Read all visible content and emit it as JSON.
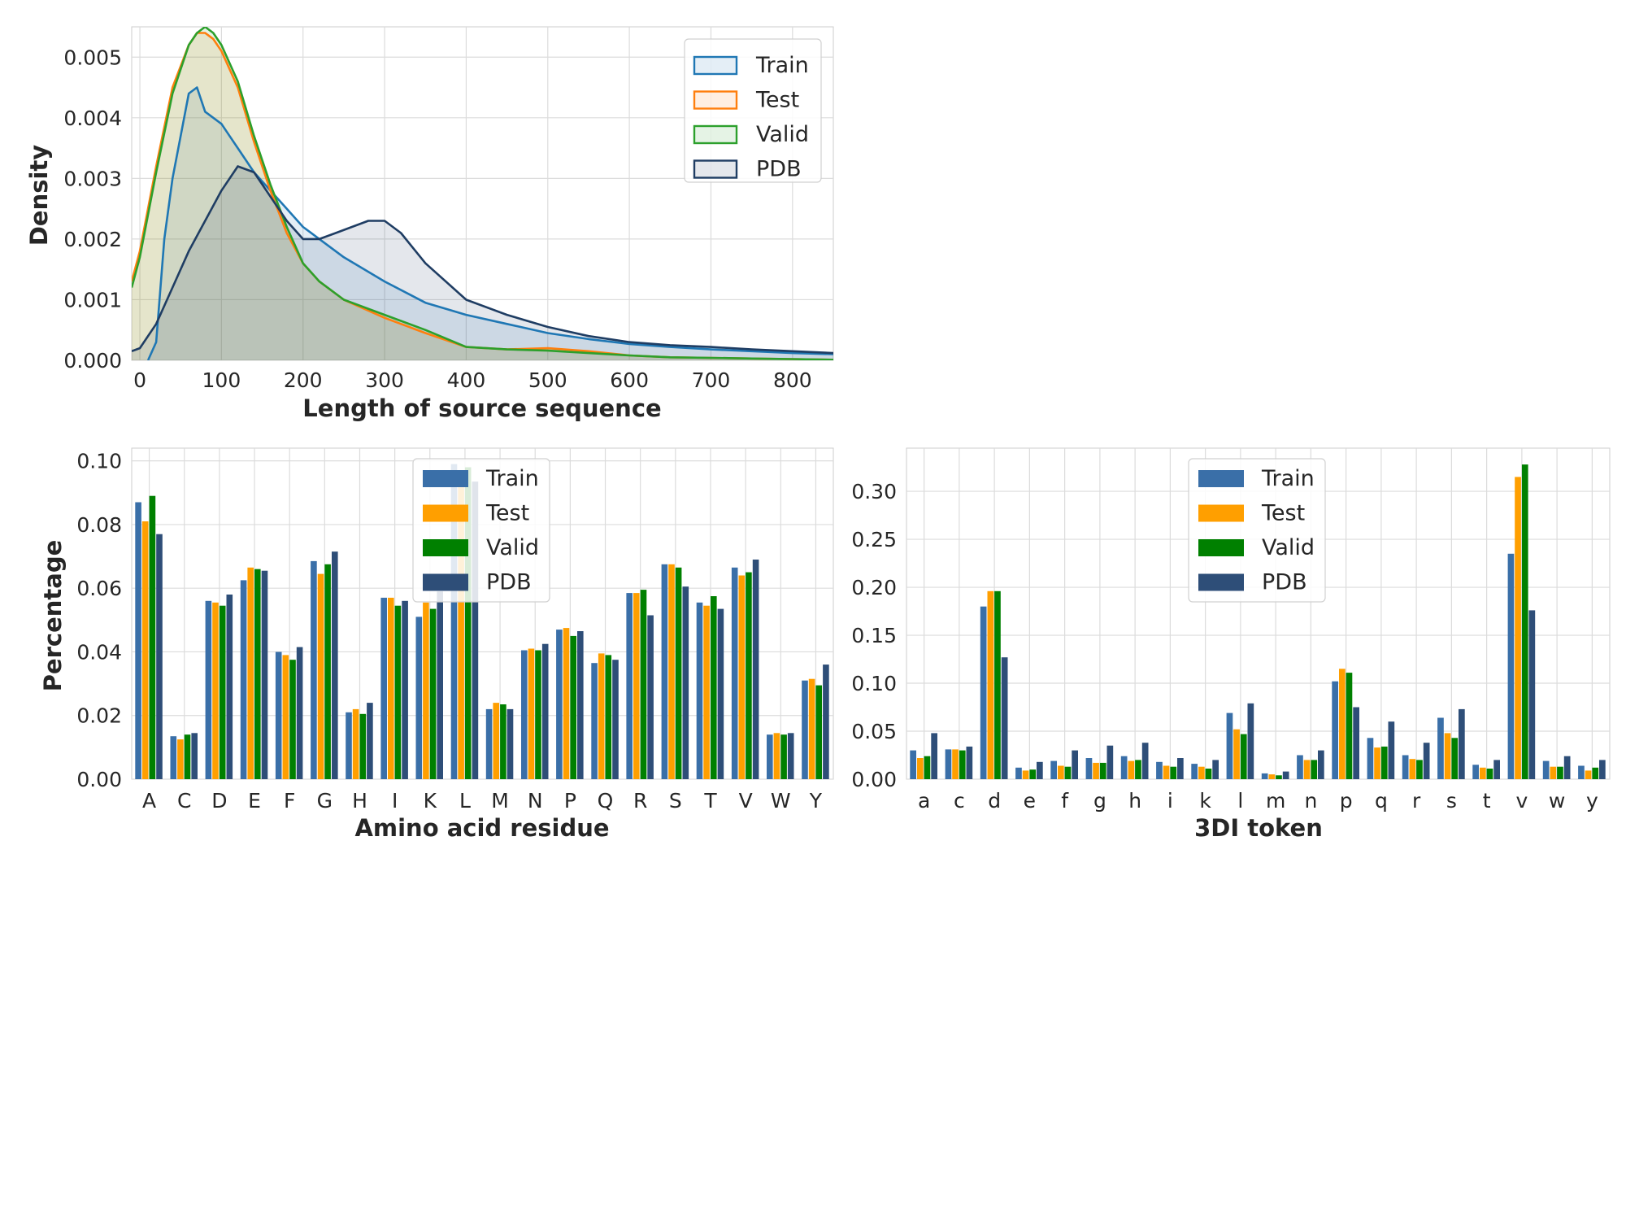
{
  "chart_data": [
    {
      "type": "area",
      "xlabel": "Length of source sequence",
      "ylabel": "Density",
      "xlim": [
        -10,
        850
      ],
      "ylim": [
        0,
        0.0055
      ],
      "xticks": [
        "0",
        "100",
        "200",
        "300",
        "400",
        "500",
        "600",
        "700",
        "800"
      ],
      "yticks": [
        "0.000",
        "0.001",
        "0.002",
        "0.003",
        "0.004",
        "0.005"
      ],
      "grid": true,
      "legend": "top-right",
      "series": [
        {
          "name": "Train",
          "color": "#1f77b4",
          "x": [
            10,
            20,
            30,
            40,
            50,
            60,
            70,
            80,
            90,
            100,
            110,
            120,
            140,
            160,
            180,
            200,
            220,
            250,
            300,
            350,
            400,
            450,
            500,
            550,
            600,
            650,
            700,
            750,
            800,
            850
          ],
          "y": [
            0,
            0.0003,
            0.002,
            0.003,
            0.0037,
            0.0044,
            0.0045,
            0.0041,
            0.004,
            0.0039,
            0.0037,
            0.0035,
            0.0031,
            0.0028,
            0.0025,
            0.0022,
            0.002,
            0.0017,
            0.0013,
            0.00095,
            0.00075,
            0.0006,
            0.00045,
            0.00035,
            0.00027,
            0.00022,
            0.00018,
            0.00015,
            0.00012,
            0.0001
          ]
        },
        {
          "name": "Test",
          "color": "#ff7f0e",
          "x": [
            -10,
            0,
            20,
            40,
            60,
            70,
            80,
            90,
            100,
            120,
            140,
            160,
            180,
            200,
            220,
            250,
            300,
            350,
            400,
            450,
            500,
            550,
            600,
            650,
            700,
            750,
            800,
            850
          ],
          "y": [
            0.0013,
            0.0018,
            0.0032,
            0.0045,
            0.0052,
            0.0054,
            0.0054,
            0.0053,
            0.0051,
            0.0045,
            0.0036,
            0.0028,
            0.0021,
            0.0016,
            0.0013,
            0.001,
            0.0007,
            0.00045,
            0.00022,
            0.00018,
            0.0002,
            0.00015,
            8e-05,
            5e-05,
            4e-05,
            3e-05,
            2e-05,
            1e-05
          ]
        },
        {
          "name": "Valid",
          "color": "#2ca02c",
          "x": [
            -10,
            0,
            20,
            40,
            60,
            70,
            80,
            90,
            100,
            120,
            140,
            160,
            180,
            200,
            220,
            250,
            300,
            350,
            400,
            450,
            500,
            550,
            600,
            650,
            700,
            750,
            800,
            850
          ],
          "y": [
            0.0012,
            0.0017,
            0.0031,
            0.0044,
            0.0052,
            0.0054,
            0.0055,
            0.0054,
            0.0052,
            0.0046,
            0.0037,
            0.0029,
            0.0022,
            0.0016,
            0.0013,
            0.001,
            0.00075,
            0.0005,
            0.00022,
            0.00018,
            0.00016,
            0.00012,
            8e-05,
            5e-05,
            4e-05,
            3e-05,
            2e-05,
            1e-05
          ]
        },
        {
          "name": "PDB",
          "color": "#1f3d63",
          "x": [
            -10,
            0,
            20,
            40,
            60,
            80,
            100,
            120,
            140,
            160,
            180,
            200,
            220,
            240,
            260,
            280,
            300,
            320,
            350,
            400,
            450,
            500,
            550,
            600,
            650,
            700,
            750,
            800,
            850
          ],
          "y": [
            0.00015,
            0.0002,
            0.0006,
            0.0012,
            0.0018,
            0.0023,
            0.0028,
            0.0032,
            0.0031,
            0.0027,
            0.0023,
            0.002,
            0.002,
            0.0021,
            0.0022,
            0.0023,
            0.0023,
            0.0021,
            0.0016,
            0.001,
            0.00075,
            0.00055,
            0.0004,
            0.0003,
            0.00025,
            0.00022,
            0.00018,
            0.00015,
            0.00012
          ]
        }
      ]
    },
    {
      "type": "bar",
      "xlabel": "Amino acid residue",
      "ylabel": "Percentage",
      "ylim": [
        0,
        0.104
      ],
      "yticks": [
        "0.00",
        "0.02",
        "0.04",
        "0.06",
        "0.08",
        "0.10"
      ],
      "grid": true,
      "legend": "top-center",
      "categories": [
        "A",
        "C",
        "D",
        "E",
        "F",
        "G",
        "H",
        "I",
        "K",
        "L",
        "M",
        "N",
        "P",
        "Q",
        "R",
        "S",
        "T",
        "V",
        "W",
        "Y"
      ],
      "series": [
        {
          "name": "Train",
          "color": "#3a6fa8",
          "values": [
            0.087,
            0.0135,
            0.056,
            0.0625,
            0.04,
            0.0685,
            0.021,
            0.057,
            0.051,
            0.099,
            0.022,
            0.0405,
            0.047,
            0.0365,
            0.0585,
            0.0675,
            0.0555,
            0.0665,
            0.014,
            0.031
          ]
        },
        {
          "name": "Test",
          "color": "#ff9f00",
          "values": [
            0.081,
            0.0125,
            0.0555,
            0.0665,
            0.039,
            0.0645,
            0.022,
            0.057,
            0.0555,
            0.096,
            0.024,
            0.041,
            0.0475,
            0.0395,
            0.0585,
            0.0675,
            0.0545,
            0.064,
            0.0145,
            0.0315
          ]
        },
        {
          "name": "Valid",
          "color": "#008000",
          "values": [
            0.089,
            0.014,
            0.0545,
            0.066,
            0.0375,
            0.0675,
            0.0205,
            0.0545,
            0.0535,
            0.098,
            0.0235,
            0.0405,
            0.045,
            0.039,
            0.0595,
            0.0665,
            0.0575,
            0.065,
            0.014,
            0.0295
          ]
        },
        {
          "name": "PDB",
          "color": "#2e4e78",
          "values": [
            0.077,
            0.0145,
            0.058,
            0.0655,
            0.0415,
            0.0715,
            0.024,
            0.056,
            0.059,
            0.0935,
            0.022,
            0.0425,
            0.0465,
            0.0375,
            0.0515,
            0.0605,
            0.0535,
            0.069,
            0.0145,
            0.036
          ]
        }
      ]
    },
    {
      "type": "bar",
      "xlabel": "3DI token",
      "ylabel": "",
      "ylim": [
        0,
        0.345
      ],
      "yticks": [
        "0.00",
        "0.05",
        "0.10",
        "0.15",
        "0.20",
        "0.25",
        "0.30"
      ],
      "grid": true,
      "legend": "top-center",
      "categories": [
        "a",
        "c",
        "d",
        "e",
        "f",
        "g",
        "h",
        "i",
        "k",
        "l",
        "m",
        "n",
        "p",
        "q",
        "r",
        "s",
        "t",
        "v",
        "w",
        "y"
      ],
      "series": [
        {
          "name": "Train",
          "color": "#3a6fa8",
          "values": [
            0.03,
            0.031,
            0.18,
            0.012,
            0.019,
            0.022,
            0.024,
            0.018,
            0.016,
            0.069,
            0.006,
            0.025,
            0.102,
            0.043,
            0.025,
            0.064,
            0.015,
            0.235,
            0.019,
            0.014
          ]
        },
        {
          "name": "Test",
          "color": "#ff9f00",
          "values": [
            0.022,
            0.031,
            0.196,
            0.009,
            0.014,
            0.017,
            0.019,
            0.014,
            0.013,
            0.052,
            0.005,
            0.02,
            0.115,
            0.033,
            0.021,
            0.048,
            0.012,
            0.315,
            0.013,
            0.009
          ]
        },
        {
          "name": "Valid",
          "color": "#008000",
          "values": [
            0.024,
            0.03,
            0.196,
            0.01,
            0.013,
            0.017,
            0.02,
            0.013,
            0.011,
            0.047,
            0.004,
            0.02,
            0.111,
            0.034,
            0.02,
            0.043,
            0.011,
            0.328,
            0.013,
            0.012
          ]
        },
        {
          "name": "PDB",
          "color": "#2e4e78",
          "values": [
            0.048,
            0.034,
            0.127,
            0.018,
            0.03,
            0.035,
            0.038,
            0.022,
            0.02,
            0.079,
            0.008,
            0.03,
            0.075,
            0.06,
            0.038,
            0.073,
            0.02,
            0.176,
            0.024,
            0.02
          ]
        }
      ]
    }
  ]
}
